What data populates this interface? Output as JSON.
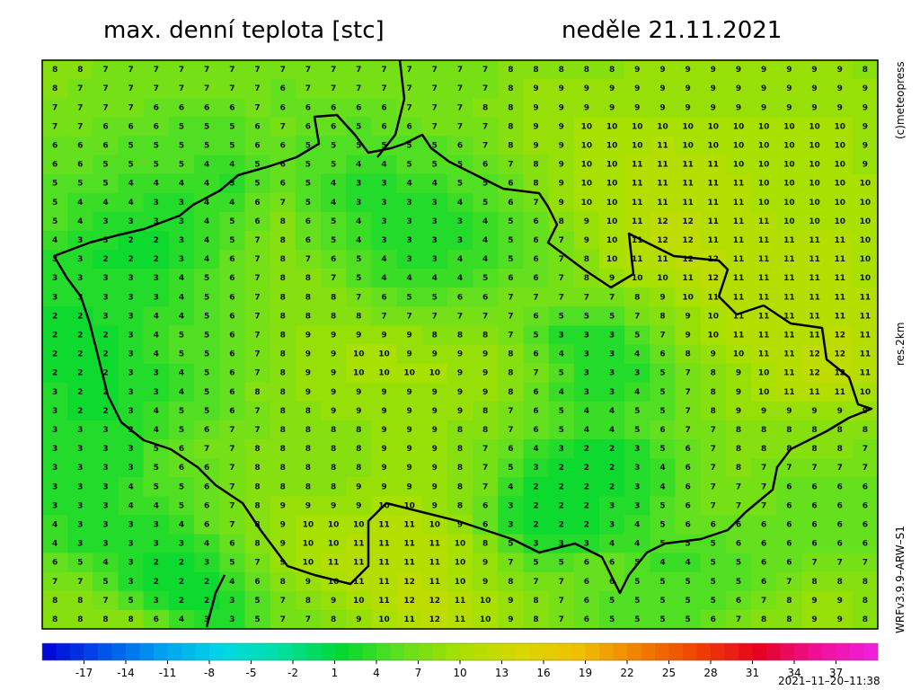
{
  "chart_data": {
    "type": "valuegrid",
    "title": "max. denní teplota [stc]",
    "date": "neděle 21.11.2021",
    "copyright": "(c)meteopress",
    "resolution": "res.2km",
    "model": "WRFv3.9.9–ARW–S1",
    "run": "2021–11–20–11:38",
    "grid": [
      [
        8,
        8,
        7,
        7,
        7,
        7,
        7,
        7,
        7,
        7,
        7,
        7,
        7,
        7,
        7,
        7,
        7,
        7,
        8,
        8,
        8,
        8,
        8,
        9,
        9,
        9,
        9,
        9,
        9,
        9,
        9,
        9,
        8
      ],
      [
        8,
        7,
        7,
        7,
        7,
        7,
        7,
        7,
        7,
        6,
        7,
        7,
        7,
        7,
        7,
        7,
        7,
        7,
        8,
        9,
        9,
        9,
        9,
        9,
        9,
        9,
        9,
        9,
        9,
        9,
        9,
        9,
        9
      ],
      [
        7,
        7,
        7,
        7,
        6,
        6,
        6,
        6,
        7,
        6,
        6,
        6,
        6,
        6,
        7,
        7,
        7,
        8,
        8,
        9,
        9,
        9,
        9,
        9,
        9,
        9,
        9,
        9,
        9,
        9,
        9,
        9,
        9
      ],
      [
        7,
        7,
        6,
        6,
        6,
        5,
        5,
        5,
        6,
        7,
        6,
        6,
        5,
        6,
        6,
        7,
        7,
        7,
        8,
        9,
        9,
        10,
        10,
        10,
        10,
        10,
        10,
        10,
        10,
        10,
        10,
        10,
        9
      ],
      [
        6,
        6,
        6,
        5,
        5,
        5,
        5,
        5,
        6,
        6,
        5,
        5,
        5,
        5,
        5,
        5,
        6,
        7,
        8,
        9,
        9,
        10,
        10,
        10,
        11,
        10,
        10,
        10,
        10,
        10,
        10,
        10,
        9
      ],
      [
        6,
        6,
        5,
        5,
        5,
        5,
        4,
        4,
        5,
        6,
        5,
        5,
        4,
        4,
        5,
        5,
        5,
        6,
        7,
        8,
        9,
        10,
        10,
        11,
        11,
        11,
        11,
        10,
        10,
        10,
        10,
        10,
        9
      ],
      [
        5,
        5,
        5,
        4,
        4,
        4,
        4,
        3,
        5,
        6,
        5,
        4,
        3,
        3,
        4,
        4,
        5,
        5,
        6,
        8,
        9,
        10,
        10,
        11,
        11,
        11,
        11,
        11,
        10,
        10,
        10,
        10,
        10
      ],
      [
        5,
        4,
        4,
        4,
        3,
        3,
        4,
        4,
        6,
        7,
        5,
        4,
        3,
        3,
        3,
        3,
        4,
        5,
        6,
        7,
        9,
        10,
        10,
        11,
        11,
        11,
        11,
        11,
        10,
        10,
        10,
        10,
        10
      ],
      [
        5,
        4,
        3,
        3,
        3,
        3,
        4,
        5,
        6,
        8,
        6,
        5,
        4,
        3,
        3,
        3,
        3,
        4,
        5,
        6,
        8,
        9,
        10,
        11,
        12,
        12,
        11,
        11,
        11,
        10,
        10,
        10,
        10
      ],
      [
        4,
        3,
        3,
        2,
        2,
        3,
        4,
        5,
        7,
        8,
        6,
        5,
        4,
        3,
        3,
        3,
        3,
        4,
        5,
        6,
        7,
        9,
        10,
        11,
        12,
        12,
        11,
        11,
        11,
        11,
        11,
        11,
        10
      ],
      [
        3,
        3,
        2,
        2,
        2,
        3,
        4,
        6,
        7,
        8,
        7,
        6,
        5,
        4,
        3,
        3,
        4,
        4,
        5,
        6,
        7,
        8,
        10,
        11,
        11,
        12,
        12,
        11,
        11,
        11,
        11,
        11,
        10
      ],
      [
        3,
        3,
        3,
        3,
        3,
        4,
        5,
        6,
        7,
        8,
        8,
        7,
        5,
        4,
        4,
        4,
        4,
        5,
        6,
        6,
        7,
        8,
        9,
        10,
        10,
        11,
        12,
        11,
        11,
        11,
        11,
        11,
        10
      ],
      [
        3,
        3,
        3,
        3,
        3,
        4,
        5,
        6,
        7,
        8,
        8,
        8,
        7,
        6,
        5,
        5,
        6,
        6,
        7,
        7,
        7,
        7,
        7,
        8,
        9,
        10,
        11,
        11,
        11,
        11,
        11,
        11,
        11
      ],
      [
        2,
        2,
        3,
        3,
        4,
        4,
        5,
        6,
        7,
        8,
        8,
        8,
        8,
        7,
        7,
        7,
        7,
        7,
        7,
        6,
        5,
        5,
        5,
        7,
        8,
        9,
        10,
        11,
        11,
        11,
        11,
        11,
        11
      ],
      [
        2,
        2,
        2,
        3,
        4,
        5,
        5,
        6,
        7,
        8,
        9,
        9,
        9,
        9,
        9,
        8,
        8,
        8,
        7,
        5,
        3,
        3,
        3,
        5,
        7,
        9,
        10,
        11,
        11,
        11,
        11,
        12,
        11
      ],
      [
        2,
        2,
        2,
        3,
        4,
        5,
        5,
        6,
        7,
        8,
        9,
        9,
        10,
        10,
        9,
        9,
        9,
        9,
        8,
        6,
        4,
        3,
        3,
        4,
        6,
        8,
        9,
        10,
        11,
        11,
        12,
        12,
        11
      ],
      [
        2,
        2,
        2,
        3,
        3,
        4,
        5,
        6,
        7,
        8,
        9,
        9,
        10,
        10,
        10,
        10,
        9,
        9,
        8,
        7,
        5,
        3,
        3,
        3,
        5,
        7,
        8,
        9,
        10,
        11,
        12,
        12,
        11
      ],
      [
        3,
        2,
        2,
        3,
        3,
        4,
        5,
        6,
        8,
        8,
        9,
        9,
        9,
        9,
        9,
        9,
        9,
        9,
        8,
        6,
        4,
        3,
        3,
        4,
        5,
        7,
        8,
        9,
        10,
        11,
        11,
        11,
        10
      ],
      [
        3,
        2,
        2,
        3,
        4,
        5,
        5,
        6,
        7,
        8,
        8,
        9,
        9,
        9,
        9,
        9,
        9,
        8,
        7,
        6,
        5,
        4,
        4,
        5,
        5,
        7,
        8,
        9,
        9,
        9,
        9,
        9,
        9
      ],
      [
        3,
        3,
        3,
        3,
        4,
        5,
        6,
        7,
        7,
        8,
        8,
        8,
        8,
        9,
        9,
        9,
        8,
        8,
        7,
        6,
        5,
        4,
        4,
        5,
        6,
        7,
        7,
        8,
        8,
        8,
        8,
        8,
        8
      ],
      [
        3,
        3,
        3,
        3,
        5,
        6,
        7,
        7,
        8,
        8,
        8,
        8,
        8,
        9,
        9,
        9,
        8,
        7,
        6,
        4,
        3,
        2,
        2,
        3,
        5,
        6,
        7,
        8,
        8,
        8,
        8,
        8,
        7
      ],
      [
        3,
        3,
        3,
        3,
        5,
        6,
        6,
        7,
        8,
        8,
        8,
        8,
        8,
        9,
        9,
        9,
        8,
        7,
        5,
        3,
        2,
        2,
        2,
        3,
        4,
        6,
        7,
        8,
        7,
        7,
        7,
        7,
        7
      ],
      [
        3,
        3,
        3,
        4,
        5,
        5,
        6,
        7,
        8,
        8,
        8,
        8,
        9,
        9,
        9,
        9,
        8,
        7,
        4,
        2,
        2,
        2,
        2,
        3,
        4,
        6,
        7,
        7,
        7,
        6,
        6,
        6,
        6
      ],
      [
        3,
        3,
        3,
        4,
        4,
        5,
        6,
        7,
        8,
        9,
        9,
        9,
        9,
        10,
        10,
        9,
        8,
        6,
        3,
        2,
        2,
        2,
        3,
        3,
        5,
        6,
        7,
        7,
        7,
        6,
        6,
        6,
        6
      ],
      [
        4,
        3,
        3,
        3,
        3,
        4,
        6,
        7,
        8,
        9,
        10,
        10,
        10,
        11,
        11,
        10,
        9,
        6,
        3,
        2,
        2,
        2,
        3,
        4,
        5,
        6,
        6,
        6,
        6,
        6,
        6,
        6,
        6
      ],
      [
        4,
        3,
        3,
        3,
        3,
        3,
        4,
        6,
        8,
        9,
        10,
        10,
        11,
        11,
        11,
        11,
        10,
        8,
        5,
        3,
        3,
        3,
        4,
        4,
        5,
        5,
        5,
        6,
        6,
        6,
        6,
        6,
        6
      ],
      [
        6,
        5,
        4,
        3,
        2,
        2,
        3,
        5,
        7,
        9,
        10,
        11,
        11,
        11,
        11,
        11,
        10,
        9,
        7,
        5,
        5,
        6,
        6,
        5,
        4,
        4,
        5,
        5,
        6,
        6,
        7,
        7,
        7
      ],
      [
        7,
        7,
        5,
        3,
        2,
        2,
        2,
        4,
        6,
        8,
        9,
        10,
        11,
        11,
        12,
        11,
        10,
        9,
        8,
        7,
        7,
        6,
        6,
        5,
        5,
        5,
        5,
        5,
        6,
        7,
        8,
        8,
        8
      ],
      [
        8,
        8,
        7,
        5,
        3,
        2,
        2,
        3,
        5,
        7,
        8,
        9,
        10,
        11,
        12,
        12,
        11,
        10,
        9,
        8,
        7,
        6,
        5,
        5,
        5,
        5,
        5,
        6,
        7,
        8,
        9,
        9,
        8
      ],
      [
        8,
        8,
        8,
        8,
        6,
        4,
        3,
        3,
        5,
        7,
        7,
        8,
        9,
        10,
        11,
        12,
        11,
        10,
        9,
        8,
        7,
        6,
        5,
        5,
        5,
        5,
        6,
        7,
        8,
        8,
        9,
        9,
        8
      ]
    ],
    "colorbar": {
      "lim": [
        -20,
        40
      ],
      "ticks": [
        -17,
        -14,
        -11,
        -8,
        -5,
        -2,
        1,
        4,
        7,
        10,
        13,
        16,
        19,
        22,
        25,
        28,
        31,
        34,
        37
      ],
      "colors": [
        "#0000d8",
        "#0050e8",
        "#00a0f0",
        "#00d8e8",
        "#00e0a0",
        "#00d830",
        "#60e020",
        "#a8e000",
        "#d8d800",
        "#f0c000",
        "#f08000",
        "#f04000",
        "#e80020",
        "#f0109a",
        "#f020e0"
      ]
    }
  }
}
